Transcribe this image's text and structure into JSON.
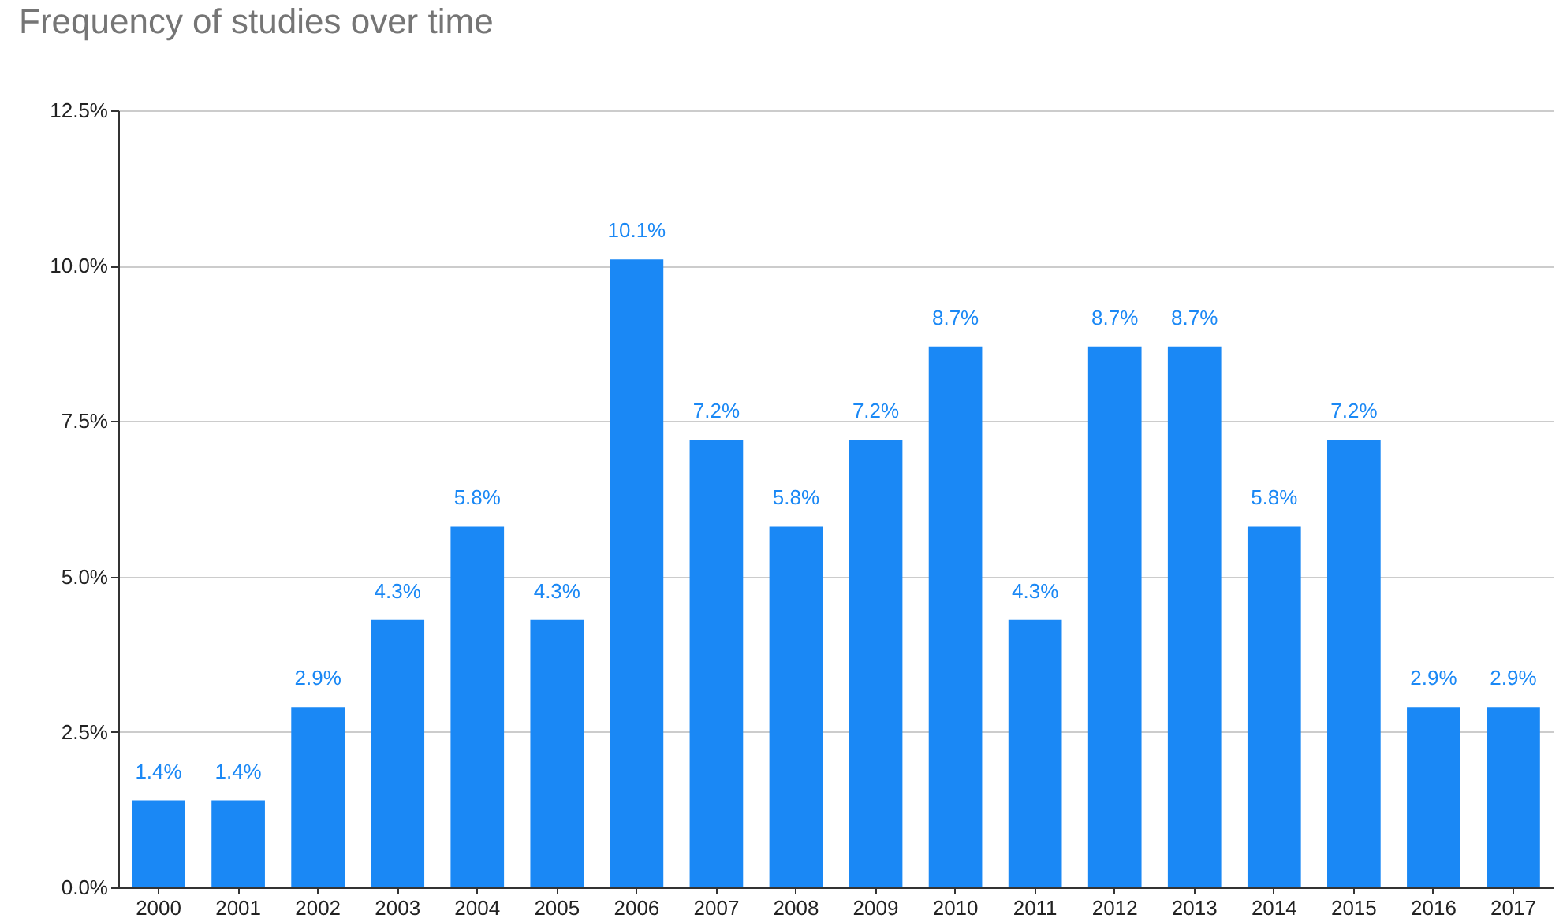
{
  "chart_data": {
    "type": "bar",
    "title": "Frequency of studies over time",
    "categories": [
      "2000",
      "2001",
      "2002",
      "2003",
      "2004",
      "2005",
      "2006",
      "2007",
      "2008",
      "2009",
      "2010",
      "2011",
      "2012",
      "2013",
      "2014",
      "2015",
      "2016",
      "2017"
    ],
    "values": [
      1.4,
      1.4,
      2.9,
      4.3,
      5.8,
      4.3,
      10.1,
      7.2,
      5.8,
      7.2,
      8.7,
      4.3,
      8.7,
      8.7,
      5.8,
      7.2,
      2.9,
      2.9
    ],
    "value_labels": [
      "1.4%",
      "1.4%",
      "2.9%",
      "4.3%",
      "5.8%",
      "4.3%",
      "10.1%",
      "7.2%",
      "5.8%",
      "7.2%",
      "8.7%",
      "4.3%",
      "8.7%",
      "8.7%",
      "5.8%",
      "7.2%",
      "2.9%",
      "2.9%"
    ],
    "color": "#1a88f5",
    "ylim": [
      0,
      12.5
    ],
    "yticks": [
      {
        "value": 0,
        "label": "0.0%"
      },
      {
        "value": 2.5,
        "label": "2.5%"
      },
      {
        "value": 5,
        "label": "5.0%"
      },
      {
        "value": 7.5,
        "label": "7.5%"
      },
      {
        "value": 10,
        "label": "10.0%"
      },
      {
        "value": 12.5,
        "label": "12.5%"
      }
    ],
    "grid": "y"
  }
}
